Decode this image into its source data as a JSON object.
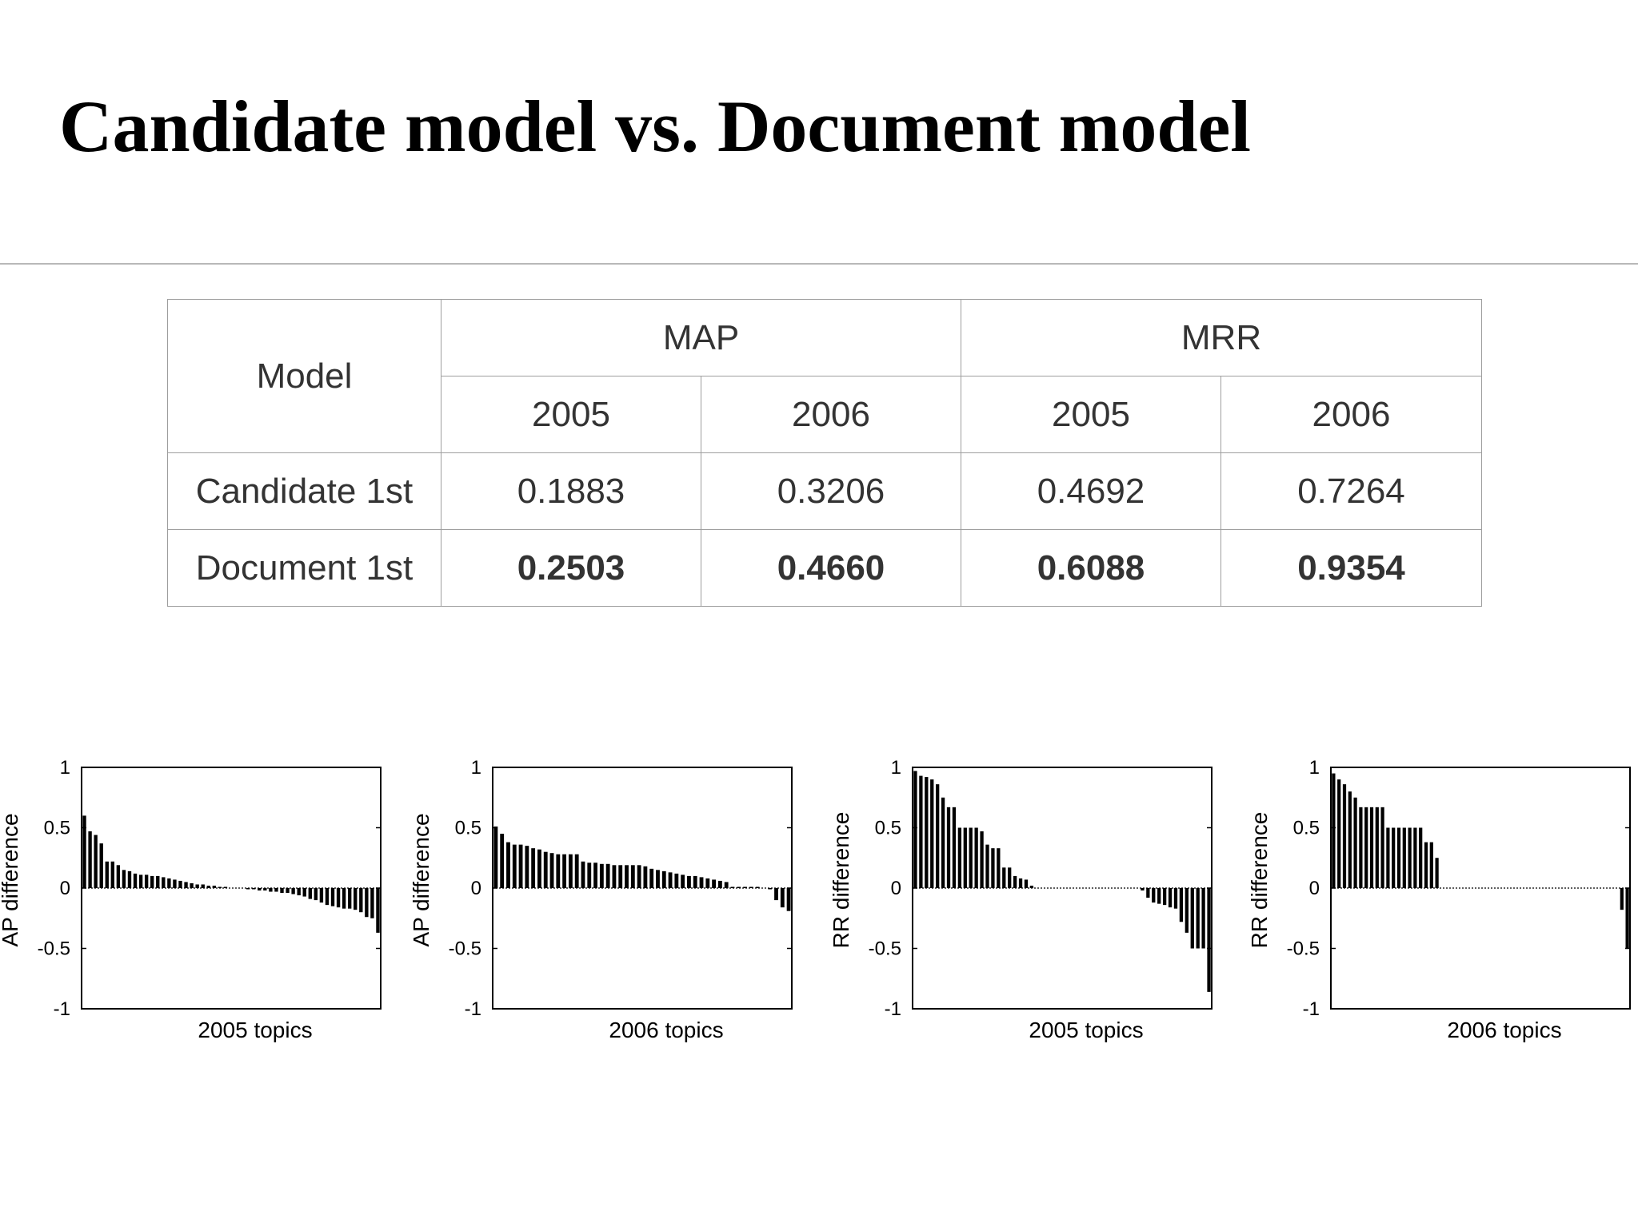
{
  "slide": {
    "title": "Candidate model vs. Document model"
  },
  "table": {
    "model_header": "Model",
    "groups": [
      "MAP",
      "MRR"
    ],
    "years": [
      "2005",
      "2006",
      "2005",
      "2006"
    ],
    "rows": [
      {
        "label": "Candidate 1st",
        "values": [
          "0.1883",
          "0.3206",
          "0.4692",
          "0.7264"
        ],
        "bold": false
      },
      {
        "label": "Document 1st",
        "values": [
          "0.2503",
          "0.4660",
          "0.6088",
          "0.9354"
        ],
        "bold": true
      }
    ]
  },
  "chart_data": [
    {
      "type": "bar",
      "xlabel": "2005 topics",
      "ylabel": "AP difference",
      "ylim": [
        -1,
        1
      ],
      "yticks": [
        "1",
        "0.5",
        "0",
        "-0.5",
        "-1"
      ],
      "values": [
        0.6,
        0.47,
        0.44,
        0.37,
        0.22,
        0.22,
        0.19,
        0.15,
        0.14,
        0.12,
        0.11,
        0.11,
        0.1,
        0.1,
        0.09,
        0.08,
        0.07,
        0.06,
        0.05,
        0.04,
        0.03,
        0.03,
        0.02,
        0.02,
        0.01,
        0.01,
        0.0,
        0.0,
        0.0,
        -0.01,
        -0.01,
        -0.02,
        -0.02,
        -0.03,
        -0.03,
        -0.04,
        -0.04,
        -0.05,
        -0.06,
        -0.07,
        -0.09,
        -0.1,
        -0.12,
        -0.14,
        -0.15,
        -0.16,
        -0.17,
        -0.17,
        -0.18,
        -0.2,
        -0.24,
        -0.25,
        -0.37
      ]
    },
    {
      "type": "bar",
      "xlabel": "2006 topics",
      "ylabel": "AP difference",
      "ylim": [
        -1,
        1
      ],
      "yticks": [
        "1",
        "0.5",
        "0",
        "-0.5",
        "-1"
      ],
      "values": [
        0.51,
        0.45,
        0.38,
        0.36,
        0.36,
        0.35,
        0.33,
        0.32,
        0.3,
        0.29,
        0.28,
        0.28,
        0.28,
        0.28,
        0.22,
        0.21,
        0.21,
        0.2,
        0.2,
        0.19,
        0.19,
        0.19,
        0.19,
        0.19,
        0.18,
        0.16,
        0.15,
        0.14,
        0.13,
        0.12,
        0.11,
        0.1,
        0.1,
        0.09,
        0.08,
        0.07,
        0.06,
        0.05,
        0.01,
        0.01,
        0.01,
        0.01,
        0.01,
        0.0,
        -0.01,
        -0.1,
        -0.16,
        -0.19
      ]
    },
    {
      "type": "bar",
      "xlabel": "2005 topics",
      "ylabel": "RR difference",
      "ylim": [
        -1,
        1
      ],
      "yticks": [
        "1",
        "0.5",
        "0",
        "-0.5",
        "-1"
      ],
      "values": [
        0.97,
        0.93,
        0.92,
        0.9,
        0.86,
        0.75,
        0.67,
        0.67,
        0.5,
        0.5,
        0.5,
        0.5,
        0.47,
        0.36,
        0.33,
        0.33,
        0.17,
        0.17,
        0.1,
        0.08,
        0.07,
        0.02,
        0.0,
        0.0,
        0.0,
        0.0,
        0.0,
        0.0,
        0.0,
        0.0,
        0.0,
        0.0,
        0.0,
        0.0,
        0.0,
        0.0,
        0.0,
        0.0,
        0.0,
        0.0,
        0.0,
        -0.02,
        -0.08,
        -0.12,
        -0.13,
        -0.14,
        -0.16,
        -0.17,
        -0.28,
        -0.37,
        -0.5,
        -0.5,
        -0.5,
        -0.86
      ]
    },
    {
      "type": "bar",
      "xlabel": "2006 topics",
      "ylabel": "RR difference",
      "ylim": [
        -1,
        1
      ],
      "yticks": [
        "1",
        "0.5",
        "0",
        "-0.5",
        "-1"
      ],
      "values": [
        0.95,
        0.9,
        0.86,
        0.8,
        0.75,
        0.67,
        0.67,
        0.67,
        0.67,
        0.67,
        0.5,
        0.5,
        0.5,
        0.5,
        0.5,
        0.5,
        0.5,
        0.38,
        0.38,
        0.25,
        0.0,
        0.0,
        0.0,
        0.0,
        0.0,
        0.0,
        0.0,
        0.0,
        0.0,
        0.0,
        0.0,
        0.0,
        0.0,
        0.0,
        0.0,
        0.0,
        0.0,
        0.0,
        0.0,
        0.0,
        0.0,
        0.0,
        0.0,
        0.0,
        0.0,
        0.0,
        0.0,
        0.0,
        0.0,
        0.0,
        0.0,
        0.0,
        0.0,
        -0.18,
        -0.5
      ]
    }
  ]
}
